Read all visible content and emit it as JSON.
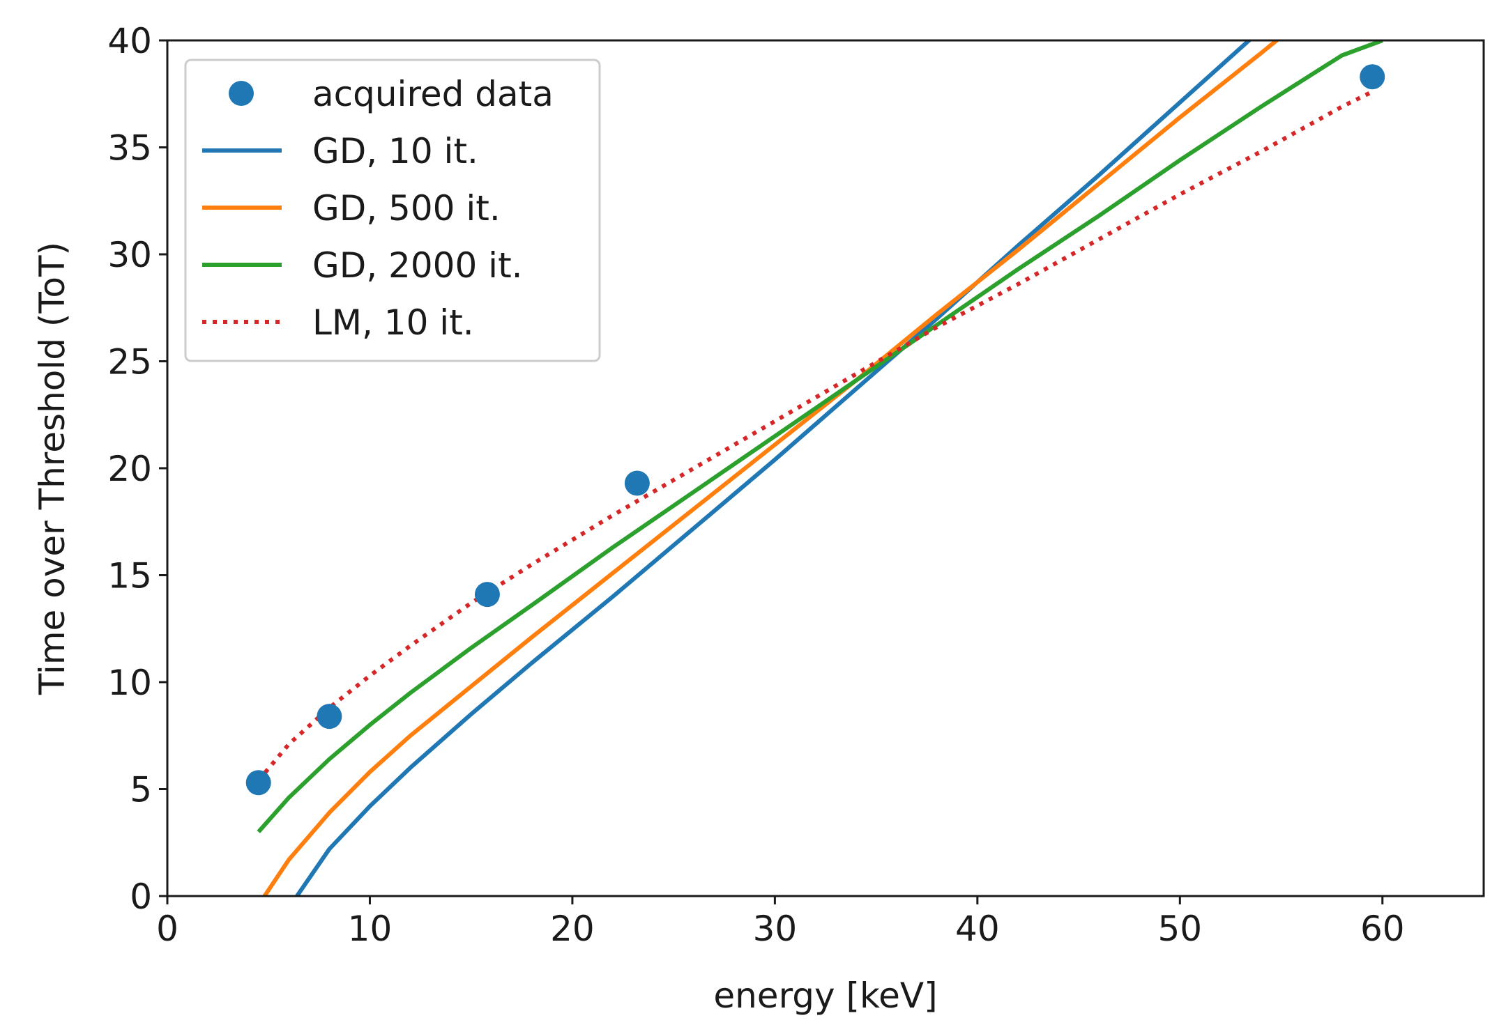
{
  "chart_data": {
    "type": "scatter",
    "title": "",
    "xlabel": "energy [keV]",
    "ylabel": "Time over Threshold (ToT)",
    "xlim": [
      0,
      65
    ],
    "ylim": [
      0,
      40
    ],
    "xticks": [
      0,
      10,
      20,
      30,
      40,
      50,
      60
    ],
    "yticks": [
      0,
      5,
      10,
      15,
      20,
      25,
      30,
      35,
      40
    ],
    "grid": false,
    "legend_position": "upper-left",
    "points": {
      "name": "acquired data",
      "color": "#1f77b4",
      "x": [
        4.5,
        8.0,
        15.8,
        23.2,
        59.5
      ],
      "y": [
        5.3,
        8.4,
        14.1,
        19.3,
        38.3
      ]
    },
    "series": [
      {
        "name": "GD, 10 it.",
        "color": "#1f77b4",
        "style": "solid",
        "x": [
          6.4,
          8,
          10,
          12,
          15,
          18,
          22,
          26,
          30,
          34,
          38,
          42,
          46,
          50,
          54,
          56
        ],
        "y": [
          0.0,
          2.2,
          4.2,
          6.0,
          8.5,
          10.9,
          14.0,
          17.2,
          20.4,
          23.7,
          27.0,
          30.4,
          33.7,
          37.1,
          40.5,
          42.2
        ]
      },
      {
        "name": "GD, 500 it.",
        "color": "#ff7f0e",
        "style": "solid",
        "x": [
          4.8,
          6,
          8,
          10,
          12,
          15,
          18,
          22,
          26,
          30,
          34,
          38,
          42,
          46,
          50,
          54,
          57.5
        ],
        "y": [
          0.0,
          1.7,
          3.9,
          5.8,
          7.5,
          9.8,
          12.1,
          15.1,
          18.1,
          21.1,
          24.1,
          27.2,
          30.2,
          33.3,
          36.4,
          39.4,
          42.1
        ]
      },
      {
        "name": "GD, 2000 it.",
        "color": "#2ca02c",
        "style": "solid",
        "x": [
          4.5,
          6,
          8,
          10,
          12,
          15,
          18,
          22,
          26,
          30,
          34,
          38,
          42,
          46,
          50,
          54,
          58,
          60
        ],
        "y": [
          3.0,
          4.6,
          6.4,
          8.0,
          9.5,
          11.6,
          13.6,
          16.3,
          18.9,
          21.5,
          24.1,
          26.7,
          29.3,
          31.8,
          34.4,
          36.9,
          39.3,
          40.0
        ]
      },
      {
        "name": "LM, 10 it.",
        "color": "#d62728",
        "style": "dotted",
        "x": [
          4.5,
          6,
          8,
          10,
          12,
          15,
          18,
          22,
          26,
          30,
          34,
          38,
          42,
          46,
          50,
          54,
          58,
          59.5
        ],
        "y": [
          5.4,
          7.1,
          8.8,
          10.3,
          11.7,
          13.7,
          15.5,
          17.8,
          20.0,
          22.2,
          24.4,
          26.6,
          28.6,
          30.7,
          32.8,
          34.8,
          36.9,
          37.6
        ]
      }
    ]
  }
}
